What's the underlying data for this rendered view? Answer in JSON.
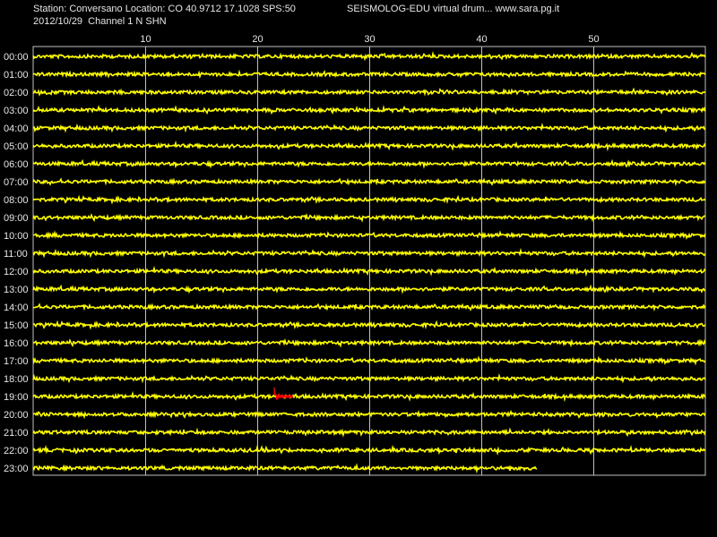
{
  "header": {
    "station_line": "Station: Conversano Location: CO 40.9712 17.1028 SPS:50",
    "date_line": "2012/10/29  Channel 1 N SHN",
    "app_line": "SEISMOLOG-EDU virtual drum... www.sara.pg.it"
  },
  "chart_data": {
    "type": "line",
    "x_tick_labels": [
      "10",
      "20",
      "30",
      "40",
      "50"
    ],
    "x_ticks": [
      10,
      20,
      30,
      40,
      50
    ],
    "xlim": [
      0,
      60
    ],
    "grid": true,
    "row_labels": [
      "00:00",
      "01:00",
      "02:00",
      "03:00",
      "04:00",
      "05:00",
      "06:00",
      "07:00",
      "08:00",
      "09:00",
      "10:00",
      "11:00",
      "12:00",
      "13:00",
      "14:00",
      "15:00",
      "16:00",
      "17:00",
      "18:00",
      "19:00",
      "20:00",
      "21:00",
      "22:00",
      "23:00"
    ],
    "row_end_minute": [
      60,
      60,
      60,
      60,
      60,
      60,
      60,
      60,
      60,
      60,
      60,
      60,
      60,
      60,
      60,
      60,
      60,
      60,
      60,
      60,
      60,
      60,
      60,
      45
    ],
    "event": {
      "row": 19,
      "start_minute": 21.5,
      "end_minute": 22.7,
      "color": "#ff0000"
    },
    "trace_color": "#ffff00",
    "grid_color": "#c0c0c0"
  }
}
